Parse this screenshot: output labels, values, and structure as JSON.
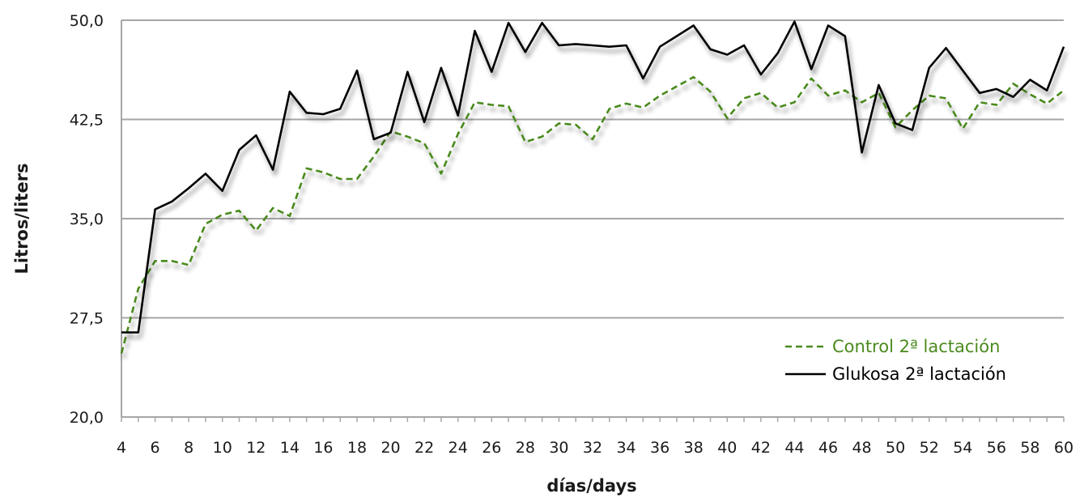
{
  "chart_data": {
    "type": "line",
    "xlabel": "días/days",
    "ylabel": "Litros/liters",
    "ylim": [
      20,
      50
    ],
    "xlim": [
      4,
      60
    ],
    "yticks": [
      "20,0",
      "27,5",
      "35,0",
      "42,5",
      "50,0"
    ],
    "ytick_values": [
      20,
      27.5,
      35,
      42.5,
      50
    ],
    "xticks": [
      "4",
      "6",
      "8",
      "10",
      "12",
      "14",
      "16",
      "18",
      "20",
      "22",
      "24",
      "26",
      "28",
      "30",
      "32",
      "34",
      "36",
      "38",
      "40",
      "42",
      "44",
      "46",
      "48",
      "50",
      "52",
      "54",
      "56",
      "58",
      "60"
    ],
    "grid": "horizontal",
    "legend_position": "bottom-right",
    "x": [
      4,
      5,
      6,
      7,
      8,
      9,
      10,
      11,
      12,
      13,
      14,
      15,
      16,
      17,
      18,
      19,
      20,
      21,
      22,
      23,
      24,
      25,
      26,
      27,
      28,
      29,
      30,
      31,
      32,
      33,
      34,
      35,
      36,
      37,
      38,
      39,
      40,
      41,
      42,
      43,
      44,
      45,
      46,
      47,
      48,
      49,
      50,
      51,
      52,
      53,
      54,
      55,
      56,
      57,
      58,
      59,
      60
    ],
    "series": [
      {
        "name": "Control 2ª lactación",
        "color": "#4a8a1e",
        "style": "dashed",
        "values": [
          24.8,
          29.7,
          31.8,
          31.8,
          31.5,
          34.6,
          35.3,
          35.6,
          34.1,
          35.8,
          35.2,
          38.8,
          38.5,
          38.0,
          38.0,
          39.7,
          41.6,
          41.2,
          40.7,
          38.4,
          41.4,
          43.8,
          43.6,
          43.5,
          40.8,
          41.2,
          42.2,
          42.1,
          41.0,
          43.3,
          43.7,
          43.4,
          44.3,
          45.0,
          45.7,
          44.6,
          42.6,
          44.1,
          44.5,
          43.4,
          43.8,
          45.6,
          44.3,
          44.7,
          43.8,
          44.5,
          41.9,
          43.2,
          44.3,
          44.1,
          41.8,
          43.8,
          43.6,
          45.2,
          44.4,
          43.7,
          44.7
        ]
      },
      {
        "name": "Glukosa 2ª lactación",
        "color": "#000000",
        "style": "solid",
        "values": [
          26.4,
          26.4,
          35.7,
          36.3,
          37.3,
          38.4,
          37.1,
          40.2,
          41.3,
          38.7,
          44.6,
          43.0,
          42.9,
          43.3,
          46.2,
          41.0,
          41.5,
          46.1,
          42.3,
          46.4,
          42.8,
          49.2,
          46.1,
          49.8,
          47.6,
          49.8,
          48.1,
          48.2,
          48.1,
          48.0,
          48.1,
          45.6,
          48.0,
          48.8,
          49.6,
          47.8,
          47.4,
          48.1,
          45.9,
          47.5,
          49.9,
          46.3,
          49.6,
          48.8,
          40.0,
          45.1,
          42.2,
          41.7,
          46.4,
          47.9,
          46.2,
          44.5,
          44.8,
          44.2,
          45.5,
          44.7,
          48.0
        ]
      }
    ]
  }
}
